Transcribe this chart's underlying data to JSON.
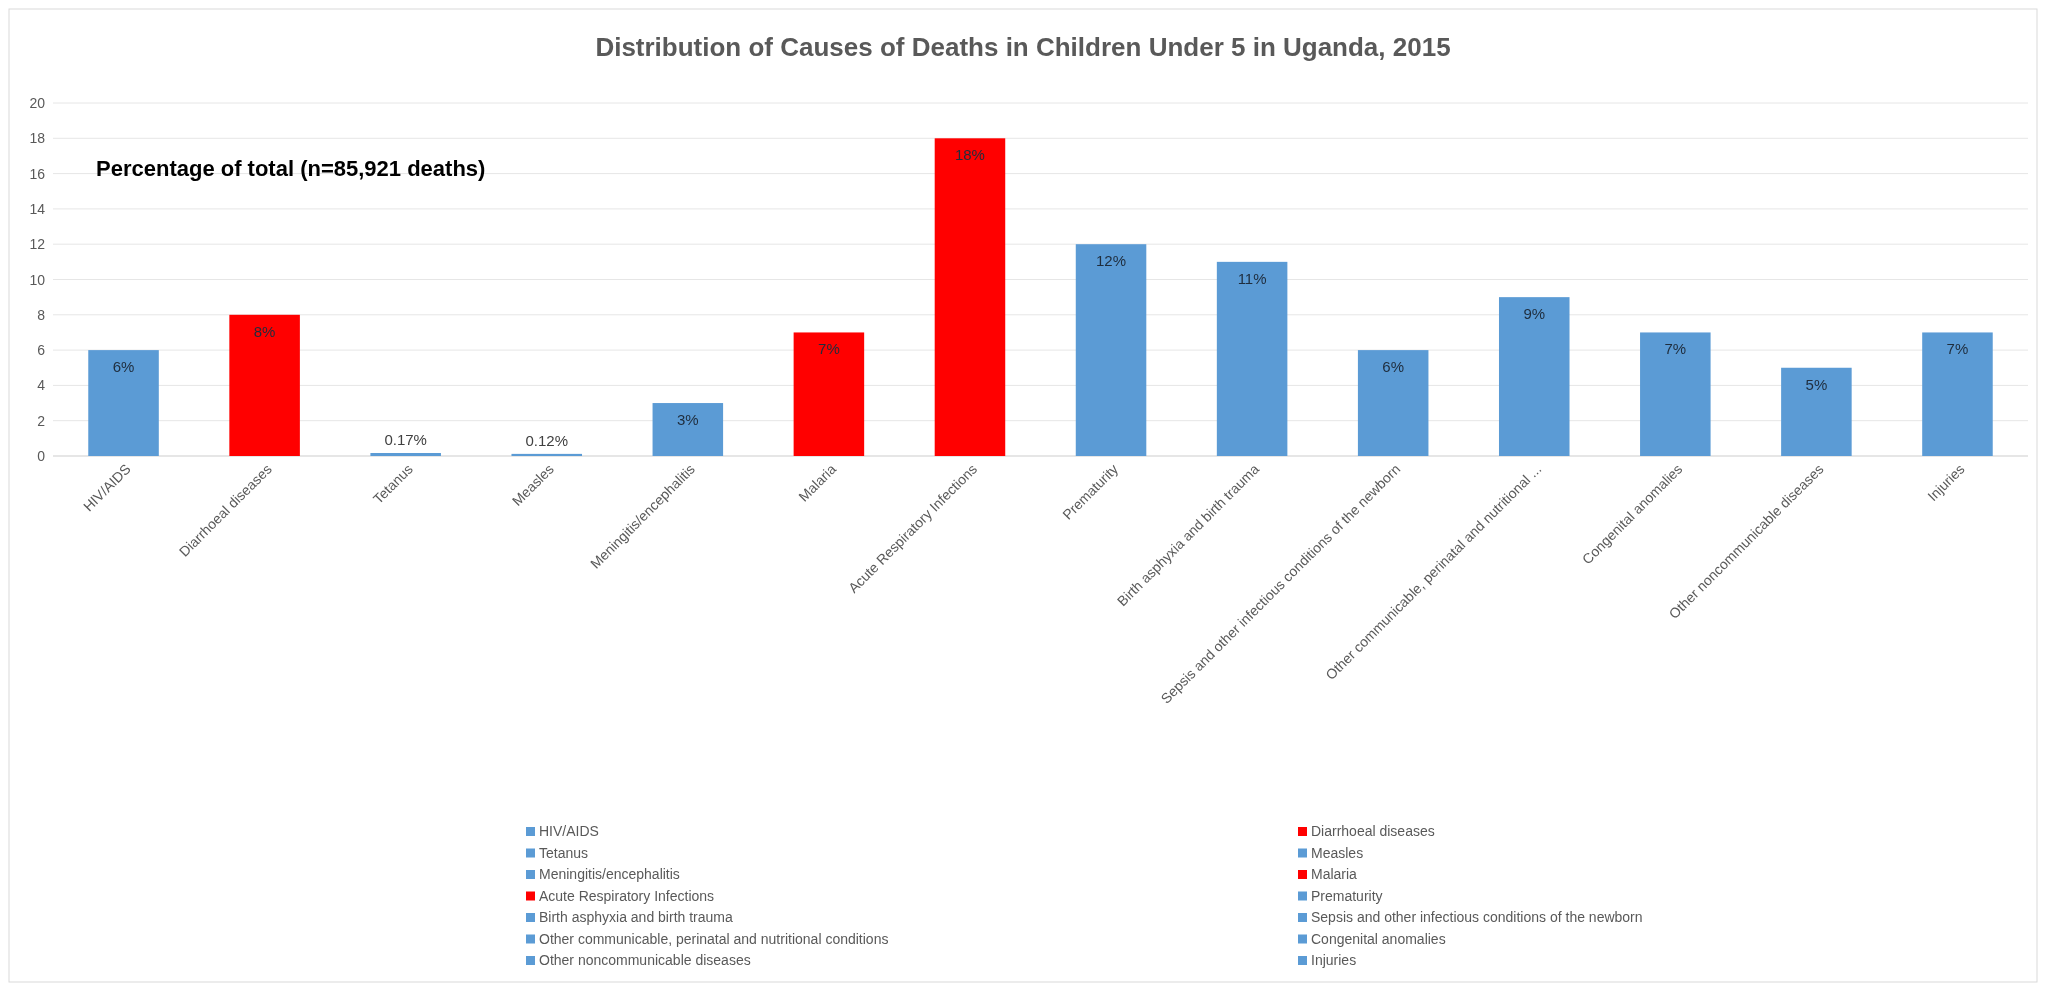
{
  "chart_data": {
    "type": "bar",
    "title": "Distribution of Causes of Deaths in Children Under 5 in Uganda, 2015",
    "annotations": [
      "Percentage of total (n=85,921 deaths)"
    ],
    "categories": [
      "HIV/AIDS",
      "Diarrhoeal diseases",
      "Tetanus",
      "Measles",
      "Meningitis/encephalitis",
      "Malaria",
      "Acute Respiratory Infections",
      "Prematurity",
      "Birth asphyxia and birth trauma",
      "Sepsis and other infectious conditions of the newborn",
      "Other communicable, perinatal and nutritional ...",
      "Congenital anomalies",
      "Other noncommunicable diseases",
      "Injuries"
    ],
    "series": [
      {
        "name": "HIV/AIDS",
        "color": "#5b9bd5",
        "values": [
          6,
          null,
          null,
          null,
          null,
          null,
          null,
          null,
          null,
          null,
          null,
          null,
          null,
          null
        ],
        "value_labels": [
          "6%",
          null,
          null,
          null,
          null,
          null,
          null,
          null,
          null,
          null,
          null,
          null,
          null,
          null
        ]
      },
      {
        "name": "Diarrhoeal diseases",
        "color": "#ff0000",
        "values": [
          null,
          8,
          null,
          null,
          null,
          null,
          null,
          null,
          null,
          null,
          null,
          null,
          null,
          null
        ],
        "value_labels": [
          null,
          "8%",
          null,
          null,
          null,
          null,
          null,
          null,
          null,
          null,
          null,
          null,
          null,
          null
        ]
      },
      {
        "name": "Tetanus",
        "color": "#5b9bd5",
        "values": [
          null,
          null,
          0.17,
          null,
          null,
          null,
          null,
          null,
          null,
          null,
          null,
          null,
          null,
          null
        ],
        "value_labels": [
          null,
          null,
          "0.17%",
          null,
          null,
          null,
          null,
          null,
          null,
          null,
          null,
          null,
          null,
          null
        ]
      },
      {
        "name": "Measles",
        "color": "#5b9bd5",
        "values": [
          null,
          null,
          null,
          0.12,
          null,
          null,
          null,
          null,
          null,
          null,
          null,
          null,
          null,
          null
        ],
        "value_labels": [
          null,
          null,
          null,
          "0.12%",
          null,
          null,
          null,
          null,
          null,
          null,
          null,
          null,
          null,
          null
        ]
      },
      {
        "name": "Meningitis/encephalitis",
        "color": "#5b9bd5",
        "values": [
          null,
          null,
          null,
          null,
          3,
          null,
          null,
          null,
          null,
          null,
          null,
          null,
          null,
          null
        ],
        "value_labels": [
          null,
          null,
          null,
          null,
          "3%",
          null,
          null,
          null,
          null,
          null,
          null,
          null,
          null,
          null
        ]
      },
      {
        "name": "Malaria",
        "color": "#ff0000",
        "values": [
          null,
          null,
          null,
          null,
          null,
          7,
          null,
          null,
          null,
          null,
          null,
          null,
          null,
          null
        ],
        "value_labels": [
          null,
          null,
          null,
          null,
          null,
          "7%",
          null,
          null,
          null,
          null,
          null,
          null,
          null,
          null
        ]
      },
      {
        "name": "Acute Respiratory Infections",
        "color": "#ff0000",
        "values": [
          null,
          null,
          null,
          null,
          null,
          null,
          18,
          null,
          null,
          null,
          null,
          null,
          null,
          null
        ],
        "value_labels": [
          null,
          null,
          null,
          null,
          null,
          null,
          "18%",
          null,
          null,
          null,
          null,
          null,
          null,
          null
        ]
      },
      {
        "name": "Prematurity",
        "color": "#5b9bd5",
        "values": [
          null,
          null,
          null,
          null,
          null,
          null,
          null,
          12,
          null,
          null,
          null,
          null,
          null,
          null
        ],
        "value_labels": [
          null,
          null,
          null,
          null,
          null,
          null,
          null,
          "12%",
          null,
          null,
          null,
          null,
          null,
          null
        ]
      },
      {
        "name": "Birth asphyxia and birth trauma",
        "color": "#5b9bd5",
        "values": [
          null,
          null,
          null,
          null,
          null,
          null,
          null,
          null,
          11,
          null,
          null,
          null,
          null,
          null
        ],
        "value_labels": [
          null,
          null,
          null,
          null,
          null,
          null,
          null,
          null,
          "11%",
          null,
          null,
          null,
          null,
          null
        ]
      },
      {
        "name": "Sepsis and other infectious conditions of the newborn",
        "color": "#5b9bd5",
        "values": [
          null,
          null,
          null,
          null,
          null,
          null,
          null,
          null,
          null,
          6,
          null,
          null,
          null,
          null
        ],
        "value_labels": [
          null,
          null,
          null,
          null,
          null,
          null,
          null,
          null,
          null,
          "6%",
          null,
          null,
          null,
          null
        ]
      },
      {
        "name": "Other communicable, perinatal and nutritional conditions",
        "color": "#5b9bd5",
        "values": [
          null,
          null,
          null,
          null,
          null,
          null,
          null,
          null,
          null,
          null,
          9,
          null,
          null,
          null
        ],
        "value_labels": [
          null,
          null,
          null,
          null,
          null,
          null,
          null,
          null,
          null,
          null,
          "9%",
          null,
          null,
          null
        ]
      },
      {
        "name": "Congenital anomalies",
        "color": "#5b9bd5",
        "values": [
          null,
          null,
          null,
          null,
          null,
          null,
          null,
          null,
          null,
          null,
          null,
          7,
          null,
          null
        ],
        "value_labels": [
          null,
          null,
          null,
          null,
          null,
          null,
          null,
          null,
          null,
          null,
          null,
          "7%",
          null,
          null
        ]
      },
      {
        "name": "Other noncommunicable diseases",
        "color": "#5b9bd5",
        "values": [
          null,
          null,
          null,
          null,
          null,
          null,
          null,
          null,
          null,
          null,
          null,
          null,
          5,
          null
        ],
        "value_labels": [
          null,
          null,
          null,
          null,
          null,
          null,
          null,
          null,
          null,
          null,
          null,
          null,
          "5%",
          null
        ]
      },
      {
        "name": "Injuries",
        "color": "#5b9bd5",
        "values": [
          null,
          null,
          null,
          null,
          null,
          null,
          null,
          null,
          null,
          null,
          null,
          null,
          null,
          7
        ],
        "value_labels": [
          null,
          null,
          null,
          null,
          null,
          null,
          null,
          null,
          null,
          null,
          null,
          null,
          null,
          "7%"
        ]
      }
    ],
    "ylim": [
      0,
      20
    ],
    "yticks": [
      0,
      2,
      4,
      6,
      8,
      10,
      12,
      14,
      16,
      18,
      20
    ],
    "grid": "y",
    "legend": "bottom"
  }
}
